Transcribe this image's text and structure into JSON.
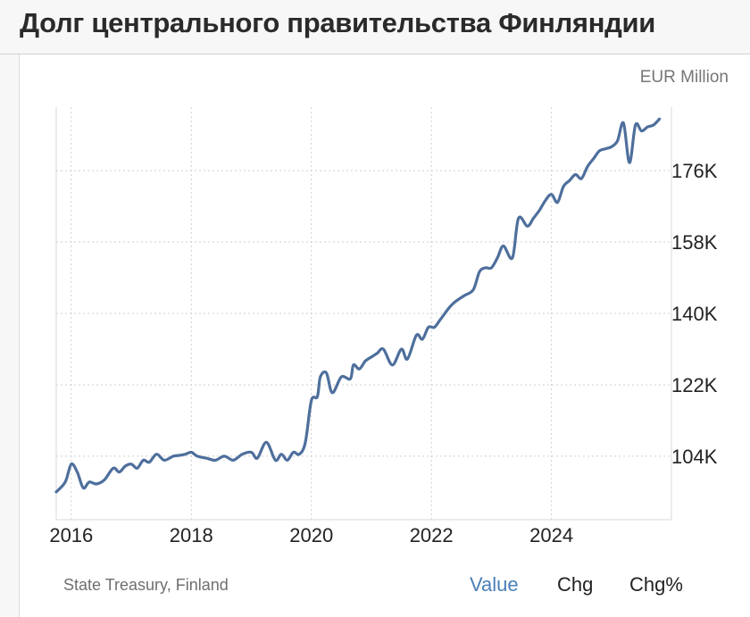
{
  "title": "Долг центрального правительства Финляндии",
  "unit_label": "EUR Million",
  "source": "State Treasury, Finland",
  "tabs": [
    {
      "label": "Value",
      "active": true
    },
    {
      "label": "Chg",
      "active": false
    },
    {
      "label": "Chg%",
      "active": false
    }
  ],
  "colors": {
    "line": "#4e6f9c",
    "active_tab": "#4a7fb8",
    "grid": "#cfcfcf"
  },
  "chart_data": {
    "type": "line",
    "title": "Долг центрального правительства Финляндии",
    "ylabel": "EUR Million",
    "xlim": [
      2015.75,
      2025.85
    ],
    "ylim": [
      88000,
      192000
    ],
    "y_ticks": [
      104000,
      122000,
      140000,
      158000,
      176000
    ],
    "y_tick_labels": [
      "104K",
      "122K",
      "140K",
      "158K",
      "176K"
    ],
    "x_ticks": [
      2016,
      2018,
      2020,
      2022,
      2024
    ],
    "x_tick_labels": [
      "2016",
      "2018",
      "2020",
      "2022",
      "2024"
    ],
    "grid": true,
    "series": [
      {
        "x": [
          2015.75,
          2015.9,
          2016.0,
          2016.1,
          2016.2,
          2016.3,
          2016.42,
          2016.55,
          2016.7,
          2016.8,
          2016.9,
          2017.0,
          2017.1,
          2017.2,
          2017.3,
          2017.42,
          2017.55,
          2017.7,
          2017.8,
          2017.9,
          2018.0,
          2018.1,
          2018.25,
          2018.4,
          2018.55,
          2018.7,
          2018.85,
          2019.0,
          2019.1,
          2019.25,
          2019.4,
          2019.5,
          2019.6,
          2019.7,
          2019.8,
          2019.9,
          2020.0,
          2020.1,
          2020.15,
          2020.25,
          2020.35,
          2020.5,
          2020.65,
          2020.7,
          2020.8,
          2020.9,
          2021.0,
          2021.1,
          2021.2,
          2021.35,
          2021.5,
          2021.6,
          2021.75,
          2021.85,
          2021.95,
          2022.05,
          2022.15,
          2022.3,
          2022.4,
          2022.55,
          2022.7,
          2022.8,
          2022.9,
          2023.0,
          2023.1,
          2023.2,
          2023.35,
          2023.45,
          2023.6,
          2023.7,
          2023.8,
          2023.9,
          2024.0,
          2024.1,
          2024.2,
          2024.3,
          2024.4,
          2024.5,
          2024.6,
          2024.7,
          2024.8,
          2024.9,
          2025.0,
          2025.1,
          2025.2,
          2025.3,
          2025.4,
          2025.5,
          2025.6,
          2025.7,
          2025.8
        ],
        "y": [
          95000,
          97500,
          102000,
          100000,
          96000,
          97500,
          97000,
          98000,
          101000,
          100000,
          101500,
          102000,
          101000,
          103000,
          102500,
          104500,
          103000,
          104000,
          104200,
          104500,
          105000,
          104000,
          103500,
          103000,
          104000,
          103000,
          104500,
          105000,
          103500,
          107500,
          103000,
          104500,
          103000,
          105000,
          104500,
          107500,
          118000,
          119000,
          124000,
          125000,
          120000,
          124000,
          123500,
          127000,
          126000,
          128000,
          129000,
          130000,
          131000,
          127000,
          131000,
          128500,
          134500,
          133500,
          136500,
          136500,
          138500,
          141500,
          143000,
          144500,
          146000,
          150500,
          151500,
          151500,
          154000,
          157000,
          154000,
          164000,
          162000,
          164000,
          166000,
          168500,
          170000,
          168000,
          172000,
          173500,
          175000,
          174000,
          177000,
          179000,
          181000,
          181500,
          182000,
          183500,
          188000,
          178000,
          187500,
          186000,
          187000,
          187500,
          189000
        ]
      }
    ]
  }
}
